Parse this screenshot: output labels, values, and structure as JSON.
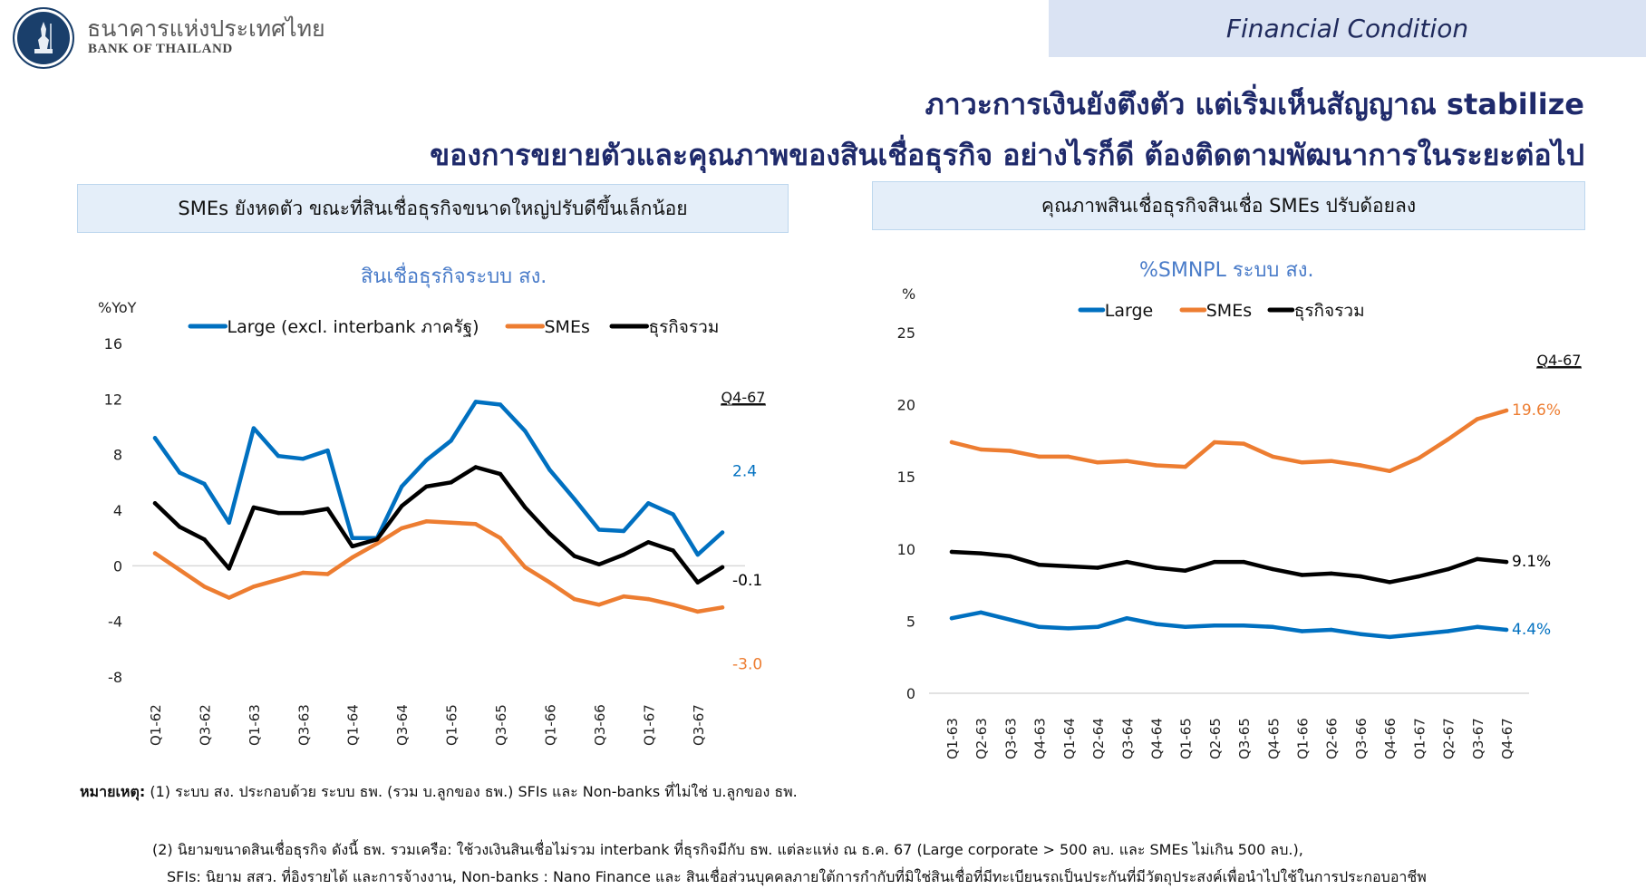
{
  "header": {
    "bank_name_th": "ธนาคารแห่งประเทศไทย",
    "bank_name_en": "BANK OF THAILAND",
    "logo_icon": "bank-of-thailand-emblem-icon",
    "section_tag": "Financial Condition",
    "headline_line1": "ภาวะการเงินยังตึงตัว แต่เริ่มเห็นสัญญาณ stabilize",
    "headline_line2": "ของการขยายตัวและคุณภาพของสินเชื่อธุรกิจ อย่างไรก็ดี ต้องติดตามพัฒนาการในระยะต่อไป"
  },
  "panels": {
    "left_subtitle": "SMEs ยังหดตัว ขณะที่สินเชื่อธุรกิจขนาดใหญ่ปรับดีขึ้นเล็กน้อย",
    "right_subtitle": "คุณภาพสินเชื่อธุรกิจสินเชื่อ SMEs ปรับด้อยลง"
  },
  "colors": {
    "large": "#0070c0",
    "smes": "#ed7d31",
    "total": "#000000",
    "title": "#4a7cc9",
    "headline": "#1f2a6b",
    "grid_zero": "#d9d9d9"
  },
  "chart_data": [
    {
      "type": "line",
      "title": "สินเชื่อธุรกิจระบบ สง.",
      "ylabel": "%YoY",
      "xlabel": "",
      "ylim": [
        -8,
        16
      ],
      "yticks": [
        -8,
        -4,
        0,
        4,
        8,
        12,
        16
      ],
      "legend_position": "top",
      "categories": [
        "Q1-62",
        "Q2-62",
        "Q3-62",
        "Q4-62",
        "Q1-63",
        "Q2-63",
        "Q3-63",
        "Q4-63",
        "Q1-64",
        "Q2-64",
        "Q3-64",
        "Q4-64",
        "Q1-65",
        "Q2-65",
        "Q3-65",
        "Q4-65",
        "Q1-66",
        "Q2-66",
        "Q3-66",
        "Q4-66",
        "Q1-67",
        "Q2-67",
        "Q3-67",
        "Q4-67"
      ],
      "tick_labels": [
        "Q1-62",
        "Q3-62",
        "Q1-63",
        "Q3-63",
        "Q1-64",
        "Q3-64",
        "Q1-65",
        "Q3-65",
        "Q1-66",
        "Q3-66",
        "Q1-67",
        "Q3-67"
      ],
      "series": [
        {
          "name": "Large (excl. interbank ภาครัฐ)",
          "key": "large",
          "values": [
            9.2,
            6.7,
            5.9,
            3.1,
            9.9,
            7.9,
            7.7,
            8.3,
            2.0,
            2.0,
            5.7,
            7.6,
            9.0,
            11.8,
            11.6,
            9.7,
            6.9,
            4.8,
            2.6,
            2.5,
            4.5,
            3.7,
            0.8,
            2.4
          ],
          "end_label": "2.4"
        },
        {
          "name": "SMEs",
          "key": "smes",
          "values": [
            0.9,
            -0.3,
            -1.5,
            -2.3,
            -1.5,
            -1.0,
            -0.5,
            -0.6,
            0.6,
            1.6,
            2.7,
            3.2,
            3.1,
            3.0,
            2.0,
            -0.1,
            -1.2,
            -2.4,
            -2.8,
            -2.2,
            -2.4,
            -2.8,
            -3.3,
            -3.0
          ],
          "end_label": "-3.0"
        },
        {
          "name": "ธุรกิจรวม",
          "key": "total",
          "values": [
            4.5,
            2.8,
            1.9,
            -0.2,
            4.2,
            3.8,
            3.8,
            4.1,
            1.4,
            1.9,
            4.3,
            5.7,
            6.0,
            7.1,
            6.6,
            4.2,
            2.3,
            0.7,
            0.1,
            0.8,
            1.7,
            1.1,
            -1.2,
            -0.1
          ],
          "end_label": "-0.1"
        }
      ],
      "annotation": "Q4-67"
    },
    {
      "type": "line",
      "title": "%SMNPL ระบบ สง.",
      "ylabel": "%",
      "xlabel": "",
      "ylim": [
        0,
        25
      ],
      "yticks": [
        0,
        5,
        10,
        15,
        20,
        25
      ],
      "legend_position": "top",
      "categories": [
        "Q1-63",
        "Q2-63",
        "Q3-63",
        "Q4-63",
        "Q1-64",
        "Q2-64",
        "Q3-64",
        "Q4-64",
        "Q1-65",
        "Q2-65",
        "Q3-65",
        "Q4-65",
        "Q1-66",
        "Q2-66",
        "Q3-66",
        "Q4-66",
        "Q1-67",
        "Q2-67",
        "Q3-67",
        "Q4-67"
      ],
      "tick_labels": [
        "Q1-63",
        "Q2-63",
        "Q3-63",
        "Q4-63",
        "Q1-64",
        "Q2-64",
        "Q3-64",
        "Q4-64",
        "Q1-65",
        "Q2-65",
        "Q3-65",
        "Q4-65",
        "Q1-66",
        "Q2-66",
        "Q3-66",
        "Q4-66",
        "Q1-67",
        "Q2-67",
        "Q3-67",
        "Q4-67"
      ],
      "series": [
        {
          "name": "Large",
          "key": "large",
          "values": [
            5.2,
            5.6,
            5.1,
            4.6,
            4.5,
            4.6,
            5.2,
            4.8,
            4.6,
            4.7,
            4.7,
            4.6,
            4.3,
            4.4,
            4.1,
            3.9,
            4.1,
            4.3,
            4.6,
            4.4
          ],
          "end_label": "4.4%"
        },
        {
          "name": "SMEs",
          "key": "smes",
          "values": [
            17.4,
            16.9,
            16.8,
            16.4,
            16.4,
            16.0,
            16.1,
            15.8,
            15.7,
            17.4,
            17.3,
            16.4,
            16.0,
            16.1,
            15.8,
            15.4,
            16.3,
            17.6,
            19.0,
            19.6
          ],
          "end_label": "19.6%"
        },
        {
          "name": "ธุรกิจรวม",
          "key": "total",
          "values": [
            9.8,
            9.7,
            9.5,
            8.9,
            8.8,
            8.7,
            9.1,
            8.7,
            8.5,
            9.1,
            9.1,
            8.6,
            8.2,
            8.3,
            8.1,
            7.7,
            8.1,
            8.6,
            9.3,
            9.1
          ],
          "end_label": "9.1%"
        }
      ],
      "annotation": "Q4-67"
    }
  ],
  "footnotes": {
    "label": "หมายเหตุ:",
    "note1": "(1) ระบบ สง. ประกอบด้วย ระบบ ธพ. (รวม บ.ลูกของ ธพ.) SFIs และ Non-banks ที่ไม่ใช่ บ.ลูกของ ธพ.",
    "note2": "(2) นิยามขนาดสินเชื่อธุรกิจ ดังนี้ ธพ. รวมเครือ: ใช้วงเงินสินเชื่อไม่รวม interbank ที่ธุรกิจมีกับ ธพ. แต่ละแห่ง ณ ธ.ค. 67 (Large corporate > 500 ลบ. และ SMEs ไม่เกิน 500 ลบ.),",
    "note3": "SFIs: นิยาม สสว. ที่อิงรายได้ และการจ้างงาน, Non-banks : Nano Finance และ สินเชื่อส่วนบุคคลภายใต้การกำกับที่มิใช่สินเชื่อที่มีทะเบียนรถเป็นประกันที่มีวัตถุประสงค์เพื่อนำไปใช้ในการประกอบอาชีพ"
  }
}
